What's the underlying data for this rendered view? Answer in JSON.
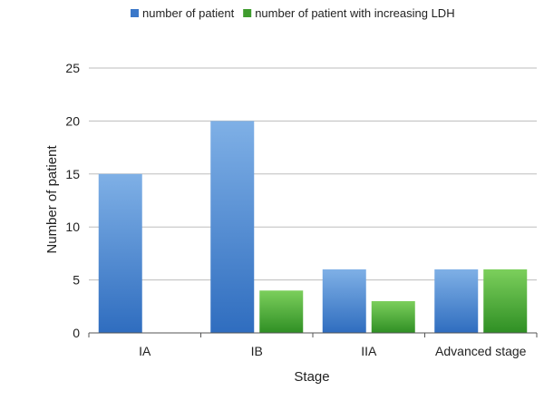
{
  "chart_data": {
    "type": "bar",
    "categories": [
      "IA",
      "IB",
      "IIA",
      "Advanced stage"
    ],
    "series": [
      {
        "name": "number of patient",
        "values": [
          15,
          20,
          6,
          6
        ],
        "color": "#3b78c9"
      },
      {
        "name": "number of patient with increasing LDH",
        "values": [
          0,
          4,
          3,
          6
        ],
        "color": "#3f9c2e"
      }
    ],
    "xlabel": "Stage",
    "ylabel": "Number of patient",
    "ylim": [
      0,
      25
    ],
    "yticks": [
      0,
      5,
      10,
      15,
      20,
      25
    ],
    "grid": true,
    "legend_position": "top"
  }
}
